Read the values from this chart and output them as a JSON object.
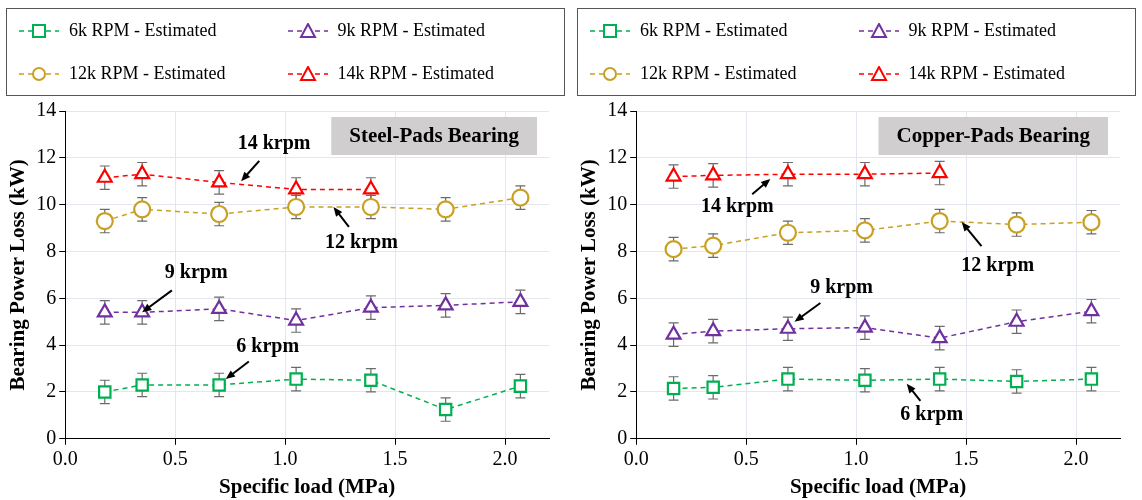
{
  "chart_data": [
    {
      "type": "line",
      "title": "Steel-Pads Bearing",
      "xlabel": "Specific load (MPa)",
      "ylabel": "Bearing Power Loss (kW)",
      "xlim": [
        0,
        2.2
      ],
      "xticks": [
        {
          "value": 0,
          "label": "0.0"
        },
        {
          "value": 0.5,
          "label": "0.5"
        },
        {
          "value": 1,
          "label": "1.0"
        },
        {
          "value": 1.5,
          "label": "1.5"
        },
        {
          "value": 2,
          "label": "2.0"
        }
      ],
      "ylim": [
        0,
        14
      ],
      "yticks": [
        0,
        2,
        4,
        6,
        8,
        10,
        12,
        14
      ],
      "grid": true,
      "legend": "top",
      "line_style": "dashed",
      "series": [
        {
          "name": "6k RPM - Estimated",
          "color": "#00b050",
          "marker": "square",
          "x": [
            0.18,
            0.35,
            0.7,
            1.05,
            1.39,
            1.73,
            2.07
          ],
          "values": [
            2.0,
            2.3,
            2.3,
            2.55,
            2.5,
            1.25,
            2.25
          ],
          "errors": [
            0.5,
            0.5,
            0.5,
            0.5,
            0.5,
            0.5,
            0.5
          ]
        },
        {
          "name": "9k RPM - Estimated",
          "color": "#7030a0",
          "marker": "triangle",
          "x": [
            0.18,
            0.35,
            0.7,
            1.05,
            1.39,
            1.73,
            2.07
          ],
          "values": [
            5.4,
            5.4,
            5.55,
            5.05,
            5.6,
            5.7,
            5.85
          ],
          "errors": [
            0.5,
            0.5,
            0.5,
            0.5,
            0.5,
            0.5,
            0.5
          ]
        },
        {
          "name": "12k RPM - Estimated",
          "color": "#c9a022",
          "marker": "circle",
          "x": [
            0.18,
            0.35,
            0.7,
            1.05,
            1.39,
            1.73,
            2.07
          ],
          "values": [
            9.3,
            9.8,
            9.6,
            9.9,
            9.9,
            9.8,
            10.3
          ],
          "errors": [
            0.5,
            0.5,
            0.5,
            0.5,
            0.5,
            0.5,
            0.5
          ]
        },
        {
          "name": "14k RPM - Estimated",
          "color": "#ff0000",
          "marker": "triangle",
          "x": [
            0.18,
            0.35,
            0.7,
            1.05,
            1.39
          ],
          "values": [
            11.15,
            11.3,
            10.95,
            10.65,
            10.65
          ],
          "errors": [
            0.5,
            0.5,
            0.5,
            0.5,
            0.5
          ]
        }
      ],
      "annotations": [
        {
          "text": "14 krpm",
          "x": 0.8,
          "y": 11.0
        },
        {
          "text": "12 krpm",
          "x": 1.22,
          "y": 9.9
        },
        {
          "text": "9 krpm",
          "x": 0.35,
          "y": 5.4
        },
        {
          "text": "6 krpm",
          "x": 0.73,
          "y": 2.55
        }
      ]
    },
    {
      "type": "line",
      "title": "Copper-Pads Bearing",
      "xlabel": "Specific load (MPa)",
      "ylabel": "Bearing Power Loss (kW)",
      "xlim": [
        0,
        2.2
      ],
      "xticks": [
        {
          "value": 0,
          "label": "0.0"
        },
        {
          "value": 0.5,
          "label": "0.5"
        },
        {
          "value": 1,
          "label": "1.0"
        },
        {
          "value": 1.5,
          "label": "1.5"
        },
        {
          "value": 2,
          "label": "2.0"
        }
      ],
      "ylim": [
        0,
        14
      ],
      "yticks": [
        0,
        2,
        4,
        6,
        8,
        10,
        12,
        14
      ],
      "grid": true,
      "legend": "top",
      "line_style": "dashed",
      "series": [
        {
          "name": "6k RPM - Estimated",
          "color": "#00b050",
          "marker": "square",
          "x": [
            0.17,
            0.35,
            0.69,
            1.04,
            1.38,
            1.73,
            2.07
          ],
          "values": [
            2.15,
            2.2,
            2.55,
            2.5,
            2.55,
            2.45,
            2.55
          ],
          "errors": [
            0.5,
            0.5,
            0.5,
            0.5,
            0.5,
            0.5,
            0.5
          ]
        },
        {
          "name": "9k RPM - Estimated",
          "color": "#7030a0",
          "marker": "triangle",
          "x": [
            0.17,
            0.35,
            0.69,
            1.04,
            1.38,
            1.73,
            2.07
          ],
          "values": [
            4.45,
            4.6,
            4.7,
            4.75,
            4.3,
            5.0,
            5.45
          ],
          "errors": [
            0.5,
            0.5,
            0.5,
            0.5,
            0.5,
            0.5,
            0.5
          ]
        },
        {
          "name": "12k RPM - Estimated",
          "color": "#c9a022",
          "marker": "circle",
          "x": [
            0.17,
            0.35,
            0.69,
            1.04,
            1.38,
            1.73,
            2.07
          ],
          "values": [
            8.1,
            8.25,
            8.8,
            8.9,
            9.3,
            9.15,
            9.25
          ],
          "errors": [
            0.5,
            0.5,
            0.5,
            0.5,
            0.5,
            0.5,
            0.5
          ]
        },
        {
          "name": "14k RPM - Estimated",
          "color": "#ff0000",
          "marker": "triangle",
          "x": [
            0.17,
            0.35,
            0.69,
            1.04,
            1.38
          ],
          "values": [
            11.2,
            11.25,
            11.3,
            11.3,
            11.35
          ],
          "errors": [
            0.5,
            0.5,
            0.5,
            0.5,
            0.5
          ]
        }
      ],
      "annotations": [
        {
          "text": "14 krpm",
          "x": 0.61,
          "y": 11.1
        },
        {
          "text": "12 krpm",
          "x": 1.48,
          "y": 9.26
        },
        {
          "text": "9 krpm",
          "x": 0.72,
          "y": 5.0
        },
        {
          "text": "6 krpm",
          "x": 1.23,
          "y": 2.35
        }
      ]
    }
  ]
}
